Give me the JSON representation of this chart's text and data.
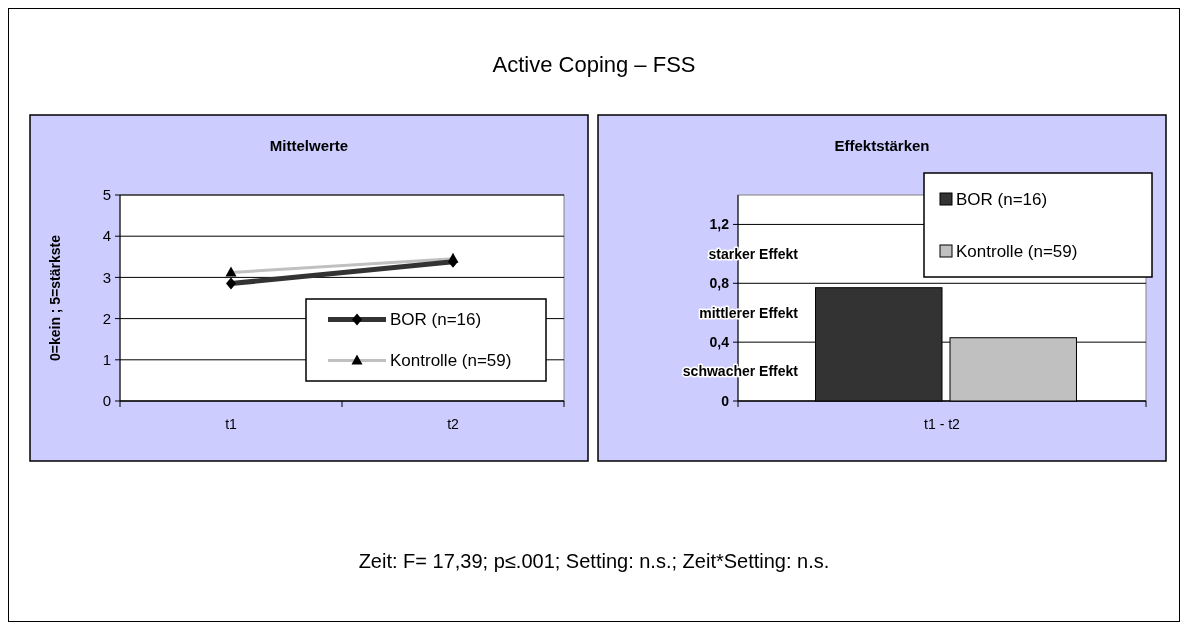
{
  "chart_data": [
    {
      "type": "other",
      "title": "Active Coping – FSS",
      "annotations": [
        "Zeit: F= 17,39; p≤.001; Setting: n.s.; Zeit*Setting: n.s."
      ]
    },
    {
      "type": "line",
      "title": "Mittelwerte",
      "ylabel": "0=kein ; 5=stärkste",
      "categories": [
        "t1",
        "t2"
      ],
      "ylim": [
        0,
        5
      ],
      "yticks": [
        0,
        1,
        2,
        3,
        4,
        5
      ],
      "grid": "y",
      "legend": "bottom right",
      "series": [
        {
          "name": "BOR (n=16)",
          "color": "#333333",
          "marker": "diamond",
          "values": [
            2.85,
            3.38
          ]
        },
        {
          "name": "Kontrolle (n=59)",
          "color": "#c0c0c0",
          "marker": "triangle",
          "values": [
            3.12,
            3.45
          ]
        }
      ]
    },
    {
      "type": "bar",
      "title": "Effektstärken",
      "categories": [
        "t1 - t2"
      ],
      "ylim": [
        0,
        1.4
      ],
      "yticks": [
        0,
        {
          "value": 0.4,
          "label": "0,4"
        },
        {
          "value": 0.8,
          "label": "0,8"
        },
        {
          "value": 1.2,
          "label": "1,2"
        }
      ],
      "grid": "y",
      "legend": "top right",
      "annotations": [
        "starker Effekt",
        "mittlerer Effekt",
        "schwacher Effekt"
      ],
      "series": [
        {
          "name": "BOR (n=16)",
          "color": "#333333",
          "values": [
            0.77
          ]
        },
        {
          "name": "Kontrolle (n=59)",
          "color": "#c0c0c0",
          "values": [
            0.43
          ]
        }
      ]
    }
  ]
}
